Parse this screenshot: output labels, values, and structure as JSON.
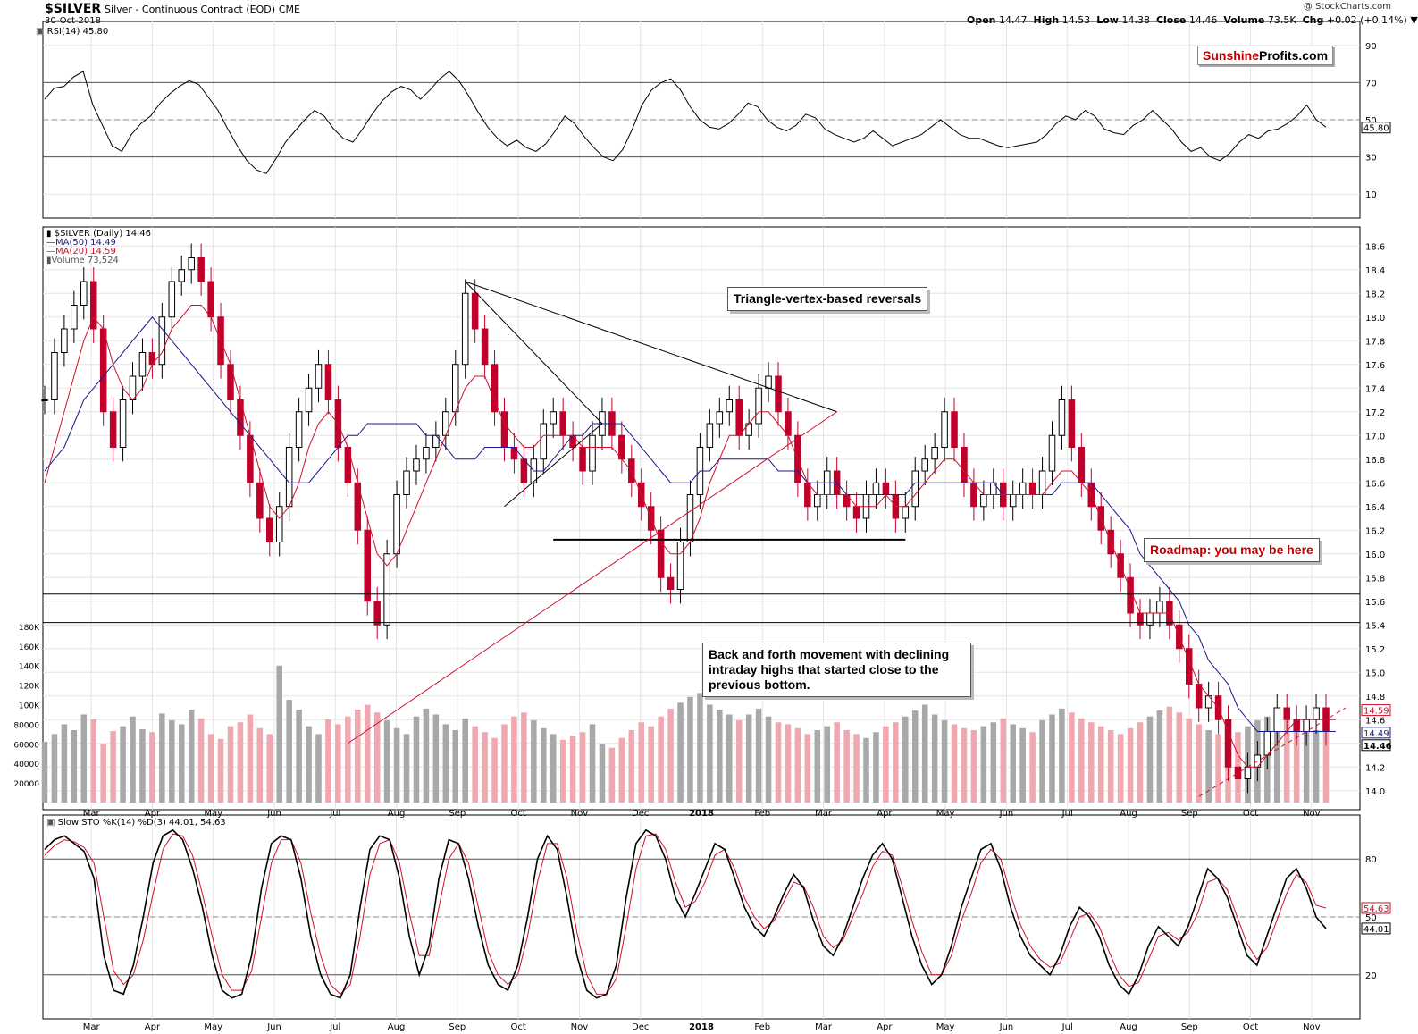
{
  "header": {
    "symbol": "$SILVER",
    "name": "Silver - Continuous Contract (EOD)",
    "exchange": "CME",
    "date": "30-Oct-2018",
    "watermark": "@ StockCharts.com",
    "open_label": "Open",
    "open": "14.47",
    "high_label": "High",
    "high": "14.53",
    "low_label": "Low",
    "low": "14.38",
    "close_label": "Close",
    "close": "14.46",
    "volume_label": "Volume",
    "volume": "73.5K",
    "chg_label": "Chg",
    "chg": "+0.02 (+0.14%)"
  },
  "logo": {
    "part1": "Sunshine",
    "part2": "Profits.com"
  },
  "legends": {
    "rsi": "RSI(14) 45.80",
    "price": "$SILVER (Daily) 14.46",
    "ma50": "MA(50) 14.49",
    "ma20": "MA(20) 14.59",
    "volume": "Volume 73,524",
    "sto": "Slow STO %K(14) %D(3) 44.01, 54.63"
  },
  "annotations": {
    "triangle": "Triangle-vertex-based reversals",
    "roadmap": "Roadmap: you may be here",
    "back_forth_1": "Back and forth movement with declining",
    "back_forth_2": "intraday highs that started close to the",
    "back_forth_3": "previous bottom."
  },
  "colors": {
    "up": "#000000",
    "down": "#c0002a",
    "ma50": "#1a1a8c",
    "ma20": "#d0102a",
    "vol_up": "#a8a8a8",
    "vol_down": "#f0a8b0",
    "rsi_low": "#8a5050",
    "rsi_high": "#3e6e3e"
  },
  "chart_data": [
    {
      "type": "line",
      "name": "RSI(14)",
      "ylim": [
        0,
        100
      ],
      "yticks": [
        10,
        30,
        50,
        70,
        90
      ],
      "reference_lines": [
        30,
        50,
        70
      ],
      "last_value": "45.80",
      "values": [
        61,
        67,
        68,
        73,
        76,
        58,
        47,
        36,
        33,
        42,
        48,
        52,
        59,
        64,
        68,
        71,
        69,
        62,
        55,
        45,
        36,
        28,
        23,
        21,
        29,
        38,
        44,
        50,
        55,
        52,
        45,
        40,
        38,
        45,
        53,
        60,
        65,
        68,
        66,
        61,
        66,
        72,
        76,
        71,
        63,
        54,
        46,
        40,
        36,
        39,
        35,
        33,
        37,
        44,
        52,
        48,
        41,
        35,
        30,
        28,
        34,
        45,
        58,
        66,
        70,
        72,
        66,
        57,
        50,
        46,
        45,
        48,
        53,
        59,
        57,
        50,
        46,
        44,
        47,
        53,
        51,
        45,
        42,
        40,
        38,
        40,
        44,
        40,
        36,
        38,
        40,
        42,
        46,
        50,
        46,
        42,
        40,
        40,
        38,
        36,
        35,
        36,
        37,
        38,
        42,
        48,
        52,
        50,
        55,
        52,
        45,
        43,
        42,
        47,
        50,
        55,
        50,
        45,
        38,
        33,
        35,
        30,
        28,
        32,
        38,
        42,
        40,
        44,
        45,
        48,
        52,
        58,
        50,
        46
      ]
    },
    {
      "type": "line",
      "name": "$SILVER (Daily)",
      "xlabels": [
        "Mar",
        "Apr",
        "May",
        "Jun",
        "Jul",
        "Aug",
        "Sep",
        "Oct",
        "Nov",
        "Dec",
        "2018",
        "Feb",
        "Mar",
        "Apr",
        "May",
        "Jun",
        "Jul",
        "Aug",
        "Sep",
        "Oct",
        "Nov"
      ],
      "ylim": [
        13.9,
        18.7
      ],
      "yticks": [
        14.0,
        14.2,
        14.4,
        14.6,
        14.8,
        15.0,
        15.2,
        15.4,
        15.6,
        15.8,
        16.0,
        16.2,
        16.4,
        16.6,
        16.8,
        17.0,
        17.2,
        17.4,
        17.6,
        17.8,
        18.0,
        18.2,
        18.4,
        18.6
      ],
      "series": [
        {
          "name": "$SILVER (Daily)",
          "values": [
            17.3,
            17.7,
            17.9,
            18.1,
            18.3,
            17.9,
            17.2,
            16.9,
            17.3,
            17.5,
            17.7,
            17.6,
            18.0,
            18.3,
            18.4,
            18.5,
            18.3,
            18.0,
            17.6,
            17.3,
            17.0,
            16.6,
            16.3,
            16.1,
            16.4,
            16.9,
            17.2,
            17.4,
            17.6,
            17.3,
            16.9,
            16.6,
            16.2,
            15.6,
            15.4,
            16.0,
            16.5,
            16.7,
            16.8,
            16.9,
            17.0,
            17.2,
            17.6,
            18.2,
            17.9,
            17.6,
            17.2,
            16.9,
            16.8,
            16.6,
            16.8,
            17.1,
            17.2,
            17.0,
            16.9,
            16.7,
            17.0,
            17.2,
            17.0,
            16.8,
            16.6,
            16.4,
            16.2,
            15.8,
            15.7,
            16.1,
            16.5,
            16.9,
            17.1,
            17.2,
            17.3,
            17.0,
            17.1,
            17.4,
            17.5,
            17.2,
            17.0,
            16.6,
            16.4,
            16.5,
            16.7,
            16.5,
            16.4,
            16.3,
            16.5,
            16.6,
            16.5,
            16.3,
            16.4,
            16.7,
            16.8,
            16.9,
            17.2,
            16.9,
            16.6,
            16.4,
            16.5,
            16.6,
            16.4,
            16.5,
            16.6,
            16.5,
            16.7,
            17.0,
            17.3,
            16.9,
            16.6,
            16.4,
            16.2,
            16.0,
            15.8,
            15.5,
            15.4,
            15.5,
            15.6,
            15.4,
            15.2,
            14.9,
            14.7,
            14.8,
            14.6,
            14.2,
            14.1,
            14.2,
            14.3,
            14.5,
            14.7,
            14.6,
            14.5,
            14.6,
            14.7,
            14.5
          ]
        },
        {
          "name": "MA(50)",
          "values": [
            16.7,
            16.8,
            16.9,
            17.1,
            17.3,
            17.4,
            17.5,
            17.6,
            17.7,
            17.8,
            17.9,
            18.0,
            17.9,
            17.8,
            17.7,
            17.6,
            17.5,
            17.4,
            17.3,
            17.2,
            17.1,
            17.0,
            16.9,
            16.8,
            16.7,
            16.6,
            16.6,
            16.6,
            16.7,
            16.8,
            16.9,
            17.0,
            17.0,
            17.1,
            17.1,
            17.1,
            17.1,
            17.1,
            17.1,
            17.0,
            17.0,
            16.9,
            16.8,
            16.8,
            16.8,
            16.9,
            16.9,
            16.9,
            16.9,
            16.8,
            16.7,
            16.7,
            16.8,
            16.9,
            17.0,
            17.0,
            17.1,
            17.1,
            17.1,
            17.1,
            17.0,
            16.9,
            16.8,
            16.7,
            16.6,
            16.6,
            16.6,
            16.7,
            16.7,
            16.8,
            16.8,
            16.8,
            16.8,
            16.8,
            16.8,
            16.7,
            16.7,
            16.7,
            16.6,
            16.6,
            16.6,
            16.6,
            16.5,
            16.5,
            16.5,
            16.5,
            16.5,
            16.5,
            16.5,
            16.6,
            16.6,
            16.6,
            16.6,
            16.6,
            16.6,
            16.6,
            16.6,
            16.6,
            16.5,
            16.5,
            16.5,
            16.5,
            16.5,
            16.5,
            16.6,
            16.6,
            16.6,
            16.6,
            16.5,
            16.4,
            16.3,
            16.2,
            16.0,
            15.9,
            15.8,
            15.7,
            15.6,
            15.4,
            15.3,
            15.1,
            15.0,
            14.9,
            14.7,
            14.6,
            14.5,
            14.5,
            14.5,
            14.5,
            14.5,
            14.5,
            14.5,
            14.5,
            14.5
          ]
        },
        {
          "name": "MA(20)",
          "values": [
            16.6,
            16.9,
            17.2,
            17.5,
            17.8,
            18.0,
            17.9,
            17.6,
            17.4,
            17.3,
            17.4,
            17.6,
            17.7,
            17.9,
            18.0,
            18.1,
            18.1,
            18.0,
            17.8,
            17.6,
            17.3,
            17.0,
            16.7,
            16.4,
            16.3,
            16.4,
            16.6,
            16.9,
            17.1,
            17.2,
            17.1,
            16.9,
            16.6,
            16.3,
            16.0,
            15.9,
            16.0,
            16.2,
            16.4,
            16.6,
            16.8,
            17.0,
            17.2,
            17.4,
            17.5,
            17.5,
            17.3,
            17.1,
            17.0,
            16.9,
            16.9,
            17.0,
            17.0,
            17.0,
            17.0,
            16.9,
            16.9,
            16.9,
            16.9,
            16.8,
            16.7,
            16.5,
            16.3,
            16.1,
            16.0,
            16.0,
            16.1,
            16.3,
            16.6,
            16.8,
            17.0,
            17.0,
            17.1,
            17.2,
            17.2,
            17.1,
            17.0,
            16.8,
            16.6,
            16.5,
            16.5,
            16.5,
            16.5,
            16.4,
            16.4,
            16.4,
            16.5,
            16.4,
            16.4,
            16.5,
            16.6,
            16.7,
            16.8,
            16.8,
            16.7,
            16.6,
            16.5,
            16.5,
            16.5,
            16.5,
            16.5,
            16.5,
            16.5,
            16.6,
            16.7,
            16.7,
            16.6,
            16.5,
            16.3,
            16.1,
            15.9,
            15.7,
            15.5,
            15.5,
            15.5,
            15.5,
            15.3,
            15.1,
            14.9,
            14.8,
            14.7,
            14.5,
            14.3,
            14.2,
            14.2,
            14.3,
            14.4,
            14.5,
            14.6,
            14.6,
            14.6,
            14.6,
            14.6
          ]
        }
      ],
      "horizontal_levels": [
        15.66,
        15.42,
        16.12
      ],
      "last_values": {
        "close": "14.46",
        "ma50": "14.49",
        "ma20": "14.59"
      }
    },
    {
      "type": "bar",
      "name": "Volume",
      "ylim": [
        0,
        190000
      ],
      "yticks": [
        "20000",
        "40000",
        "60000",
        "80000",
        "100K",
        "120K",
        "140K",
        "160K",
        "180K"
      ],
      "values": [
        62000,
        70000,
        80000,
        74000,
        90000,
        85000,
        60000,
        73000,
        78000,
        88000,
        75000,
        72000,
        91000,
        84000,
        80000,
        95000,
        86000,
        70000,
        65000,
        78000,
        82000,
        90000,
        76000,
        70000,
        140000,
        105000,
        95000,
        78000,
        70000,
        85000,
        80000,
        88000,
        95000,
        100000,
        92000,
        84000,
        76000,
        70000,
        88000,
        96000,
        90000,
        80000,
        74000,
        86000,
        78000,
        72000,
        66000,
        80000,
        88000,
        92000,
        84000,
        76000,
        70000,
        64000,
        68000,
        72000,
        80000,
        60000,
        56000,
        66000,
        74000,
        82000,
        78000,
        88000,
        96000,
        102000,
        108000,
        112000,
        100000,
        95000,
        90000,
        84000,
        90000,
        96000,
        88000,
        82000,
        80000,
        76000,
        70000,
        74000,
        78000,
        82000,
        74000,
        70000,
        66000,
        72000,
        78000,
        82000,
        88000,
        94000,
        100000,
        90000,
        84000,
        80000,
        76000,
        74000,
        78000,
        82000,
        86000,
        80000,
        76000,
        72000,
        84000,
        90000,
        96000,
        92000,
        86000,
        82000,
        78000,
        74000,
        70000,
        76000,
        82000,
        88000,
        94000,
        98000,
        92000,
        86000,
        80000,
        74000,
        70000,
        66000,
        72000,
        78000,
        84000,
        88000,
        92000,
        86000,
        80000,
        76000,
        74000,
        73524
      ],
      "last_value": "73,524"
    },
    {
      "type": "line",
      "name": "Slow STO %K(14) %D(3)",
      "ylim": [
        0,
        100
      ],
      "yticks": [
        20,
        50,
        80
      ],
      "reference_lines": [
        20,
        50,
        80
      ],
      "series": [
        {
          "name": "%K",
          "values": [
            85,
            90,
            92,
            88,
            84,
            70,
            30,
            12,
            10,
            25,
            50,
            78,
            92,
            95,
            90,
            75,
            55,
            30,
            12,
            8,
            10,
            30,
            65,
            88,
            92,
            90,
            70,
            40,
            20,
            10,
            8,
            20,
            55,
            85,
            92,
            90,
            70,
            40,
            20,
            35,
            70,
            90,
            88,
            70,
            45,
            25,
            15,
            12,
            25,
            50,
            80,
            92,
            85,
            60,
            30,
            12,
            8,
            10,
            25,
            60,
            88,
            95,
            92,
            80,
            60,
            50,
            62,
            75,
            88,
            85,
            70,
            55,
            45,
            40,
            50,
            62,
            72,
            65,
            48,
            35,
            30,
            40,
            55,
            70,
            82,
            88,
            80,
            60,
            40,
            25,
            15,
            20,
            35,
            55,
            70,
            85,
            88,
            75,
            55,
            40,
            30,
            25,
            20,
            30,
            45,
            55,
            50,
            40,
            25,
            15,
            10,
            20,
            35,
            45,
            40,
            35,
            45,
            60,
            75,
            70,
            60,
            45,
            30,
            25,
            40,
            55,
            70,
            75,
            65,
            50,
            44
          ]
        },
        {
          "name": "%D",
          "values": [
            82,
            87,
            90,
            89,
            86,
            78,
            50,
            22,
            15,
            20,
            38,
            62,
            85,
            93,
            92,
            82,
            62,
            40,
            20,
            12,
            12,
            22,
            50,
            78,
            90,
            90,
            78,
            52,
            30,
            15,
            10,
            15,
            40,
            72,
            88,
            90,
            78,
            52,
            30,
            30,
            55,
            80,
            88,
            78,
            55,
            32,
            20,
            15,
            20,
            40,
            68,
            88,
            88,
            70,
            42,
            20,
            10,
            10,
            18,
            45,
            75,
            92,
            93,
            85,
            68,
            55,
            58,
            68,
            82,
            85,
            75,
            60,
            50,
            44,
            48,
            58,
            68,
            66,
            55,
            40,
            34,
            38,
            50,
            62,
            76,
            84,
            82,
            66,
            48,
            32,
            20,
            20,
            30,
            48,
            62,
            78,
            85,
            80,
            62,
            46,
            35,
            28,
            24,
            26,
            38,
            50,
            52,
            45,
            32,
            20,
            14,
            16,
            28,
            40,
            42,
            38,
            42,
            52,
            68,
            70,
            64,
            50,
            36,
            28,
            34,
            48,
            62,
            72,
            68,
            56,
            54.63
          ]
        }
      ],
      "last_values": {
        "k": "44.01",
        "d": "54.63"
      }
    }
  ]
}
